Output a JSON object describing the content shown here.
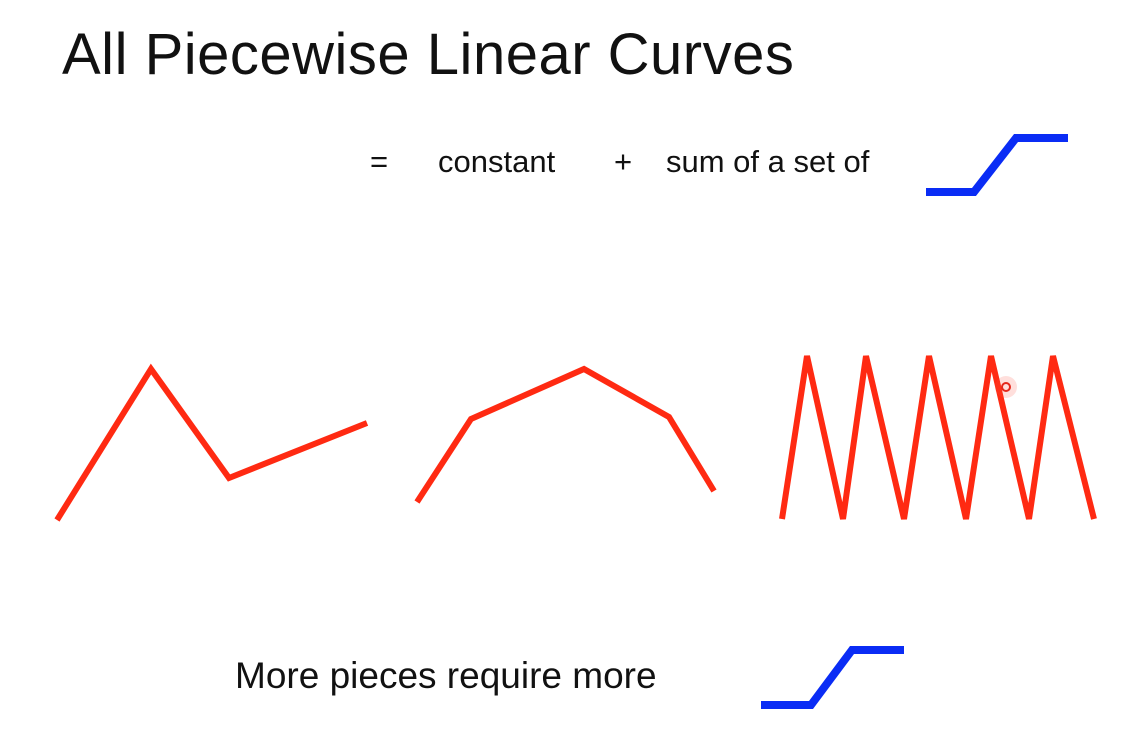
{
  "title": "All Piecewise Linear Curves",
  "equation": {
    "equals": "=",
    "constant": "constant",
    "plus": "+",
    "sum_text": "sum of a set of"
  },
  "bottom_text": "More pieces require more",
  "colors": {
    "curve": "#ff2a12",
    "step_function": "#0a2cf5",
    "text": "#111111",
    "pointer": "#e4281c"
  },
  "icons": {
    "step_function": "sigmoid-step-icon",
    "pointer": "laser-pointer-icon"
  }
}
